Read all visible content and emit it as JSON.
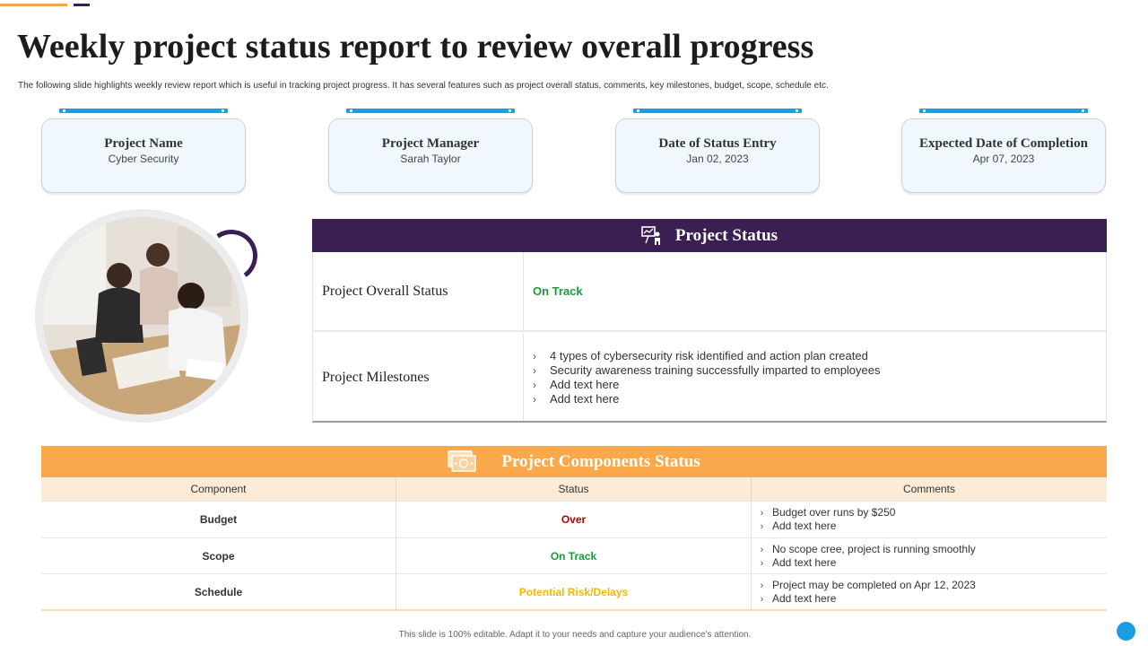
{
  "header": {
    "title": "Weekly project status report to review overall progress",
    "subtitle": "The following slide highlights weekly review report which is useful in tracking project progress. It has several features such as project overall status, comments, key milestones, budget, scope, schedule etc."
  },
  "info_cards": [
    {
      "label": "Project Name",
      "value": "Cyber Security"
    },
    {
      "label": "Project Manager",
      "value": "Sarah Taylor"
    },
    {
      "label": "Date of Status Entry",
      "value": "Jan 02, 2023"
    },
    {
      "label": "Expected Date of Completion",
      "value": "Apr 07, 2023"
    }
  ],
  "project_status": {
    "title": "Project Status",
    "icon": "presentation-icon",
    "overall_label": "Project Overall Status",
    "overall_value": "On Track",
    "milestones_label": "Project Milestones",
    "milestones": [
      "4 types of cybersecurity risk identified and action plan created",
      "Security awareness training successfully imparted to employees",
      "Add text here",
      "Add text here"
    ]
  },
  "components": {
    "title": "Project Components Status",
    "icon": "money-icon",
    "columns": [
      "Component",
      "Status",
      "Comments"
    ],
    "rows": [
      {
        "component": "Budget",
        "status": "Over",
        "status_color": "#c00000",
        "comments": [
          "Budget over runs by $250",
          "Add text here"
        ]
      },
      {
        "component": "Scope",
        "status": "On Track",
        "status_color": "#1a9a3c",
        "comments": [
          "No scope cree, project is running smoothly",
          "Add text here"
        ]
      },
      {
        "component": "Schedule",
        "status": "Potential Risk/Delays",
        "status_color": "#f5b800",
        "comments": [
          "Project may be completed on Apr 12, 2023",
          "Add text here"
        ]
      }
    ]
  },
  "footer": {
    "text": "This slide is 100% editable.  Adapt it to your needs and capture your audience's attention."
  },
  "colors": {
    "purple": "#3b1f52",
    "orange": "#f9a84b",
    "blue": "#1a9ee0",
    "green": "#1a9a3c"
  }
}
